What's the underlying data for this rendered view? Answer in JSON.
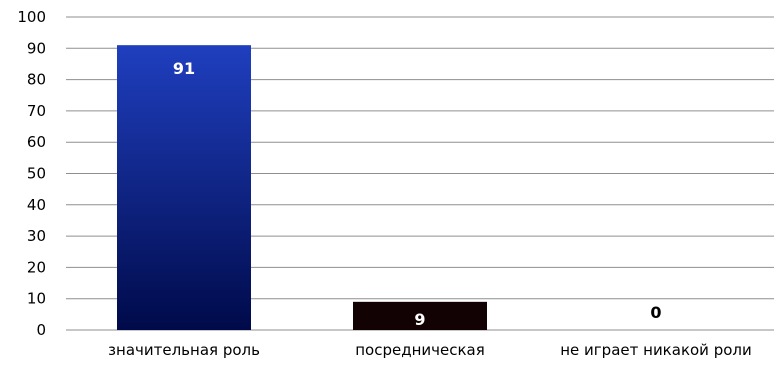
{
  "chart_data": {
    "type": "bar",
    "title": "",
    "xlabel": "",
    "ylabel": "",
    "categories": [
      "значительная роль",
      "посредническая",
      "не играет никакой роли"
    ],
    "values": [
      91,
      9,
      0
    ],
    "data_labels": [
      "91",
      "9",
      "0"
    ],
    "ylim": [
      0,
      100
    ],
    "yticks": [
      "0",
      "10",
      "20",
      "30",
      "40",
      "50",
      "60",
      "70",
      "80",
      "90",
      "100"
    ],
    "grid": true,
    "legend": "none",
    "colors": {
      "bar_1_top": "#1f3fbf",
      "bar_1_bottom": "#000a4a",
      "bar_2": "#120203",
      "grid": "#8f8f8f",
      "label_dark": "#000000",
      "label_light": "#ffffff"
    }
  }
}
